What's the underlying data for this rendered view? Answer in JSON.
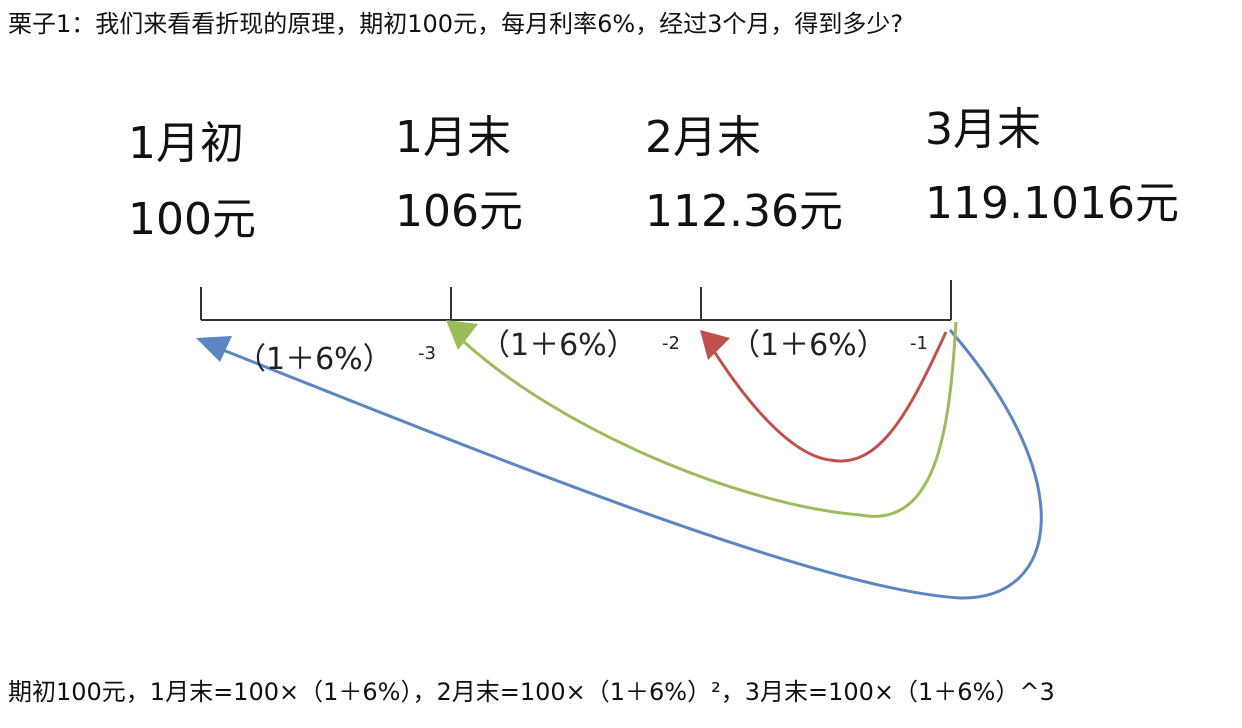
{
  "question": "栗子1：我们来看看折现的原理，期初100元，每月利率6%，经过3个月，得到多少?",
  "timeline": {
    "points": [
      {
        "period": "1月初",
        "amount": "100元"
      },
      {
        "period": "1月末",
        "amount": "106元"
      },
      {
        "period": "2月末",
        "amount": "112.36元"
      },
      {
        "period": "3月末",
        "amount": "119.1016元"
      }
    ]
  },
  "arrows": [
    {
      "factor": "（1＋6%）",
      "exponent": "-3",
      "color": "#5b86c2"
    },
    {
      "factor": "（1＋6%）",
      "exponent": "-2",
      "color": "#9cbc5a"
    },
    {
      "factor": "（1＋6%）",
      "exponent": "-1",
      "color": "#c0504d"
    }
  ],
  "formula": "期初100元，1月末=100×（1＋6%），2月末=100×（1＋6%）²，3月末=100×（1＋6%）^3"
}
